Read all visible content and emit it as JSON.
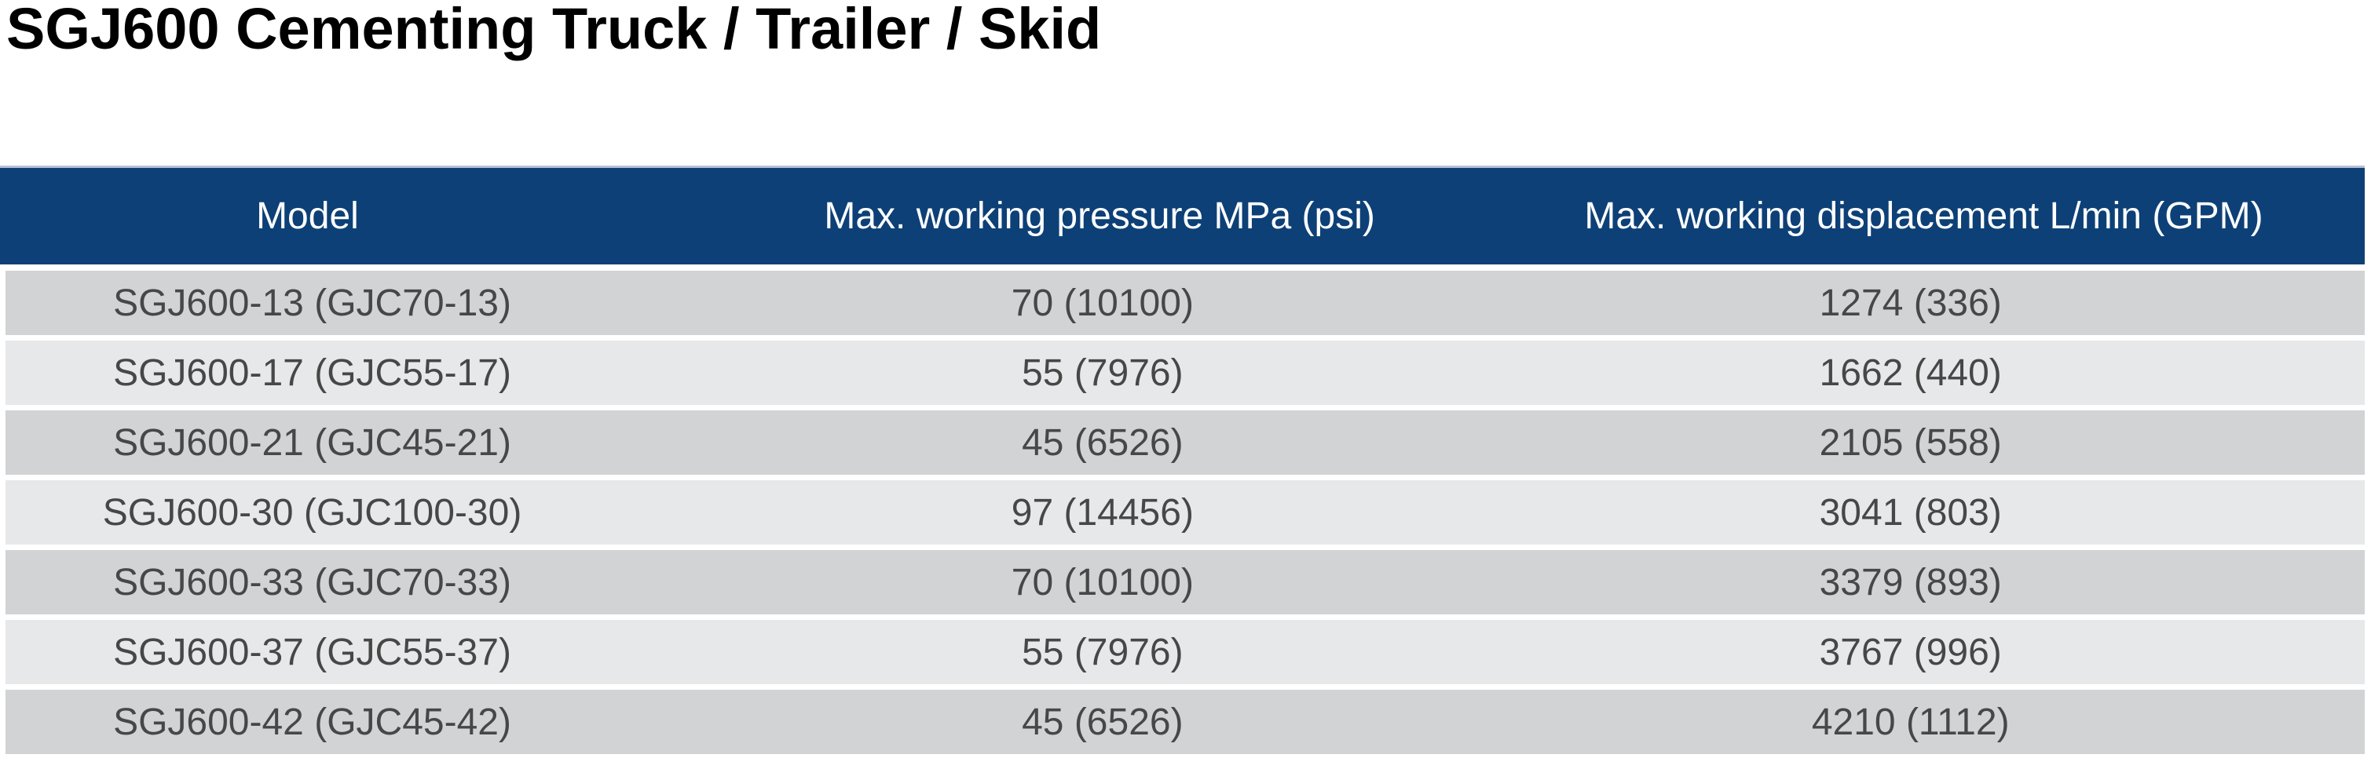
{
  "page": {
    "title": "SGJ600 Cementing Truck / Trailer / Skid"
  },
  "table": {
    "columns": [
      "Model",
      "Max. working pressure MPa (psi)",
      "Max. working displacement L/min (GPM)"
    ],
    "rows": [
      [
        "SGJ600-13 (GJC70-13)",
        "70 (10100)",
        "1274 (336)"
      ],
      [
        "SGJ600-17 (GJC55-17)",
        "55 (7976)",
        "1662 (440)"
      ],
      [
        "SGJ600-21 (GJC45-21)",
        "45 (6526)",
        "2105 (558)"
      ],
      [
        "SGJ600-30 (GJC100-30)",
        "97 (14456)",
        "3041 (803)"
      ],
      [
        "SGJ600-33 (GJC70-33)",
        "70 (10100)",
        "3379 (893)"
      ],
      [
        "SGJ600-37 (GJC55-37)",
        "55 (7976)",
        "3767 (996)"
      ],
      [
        "SGJ600-42 (GJC45-42)",
        "45 (6526)",
        "4210 (1112)"
      ]
    ],
    "colors": {
      "header_bg": "#0d4076",
      "header_text": "#ffffff",
      "row_odd_bg": "#d1d3d4",
      "row_even_bg": "#e7e8e9",
      "cell_text": "#474747",
      "top_rule": "#b7c0d4"
    }
  }
}
